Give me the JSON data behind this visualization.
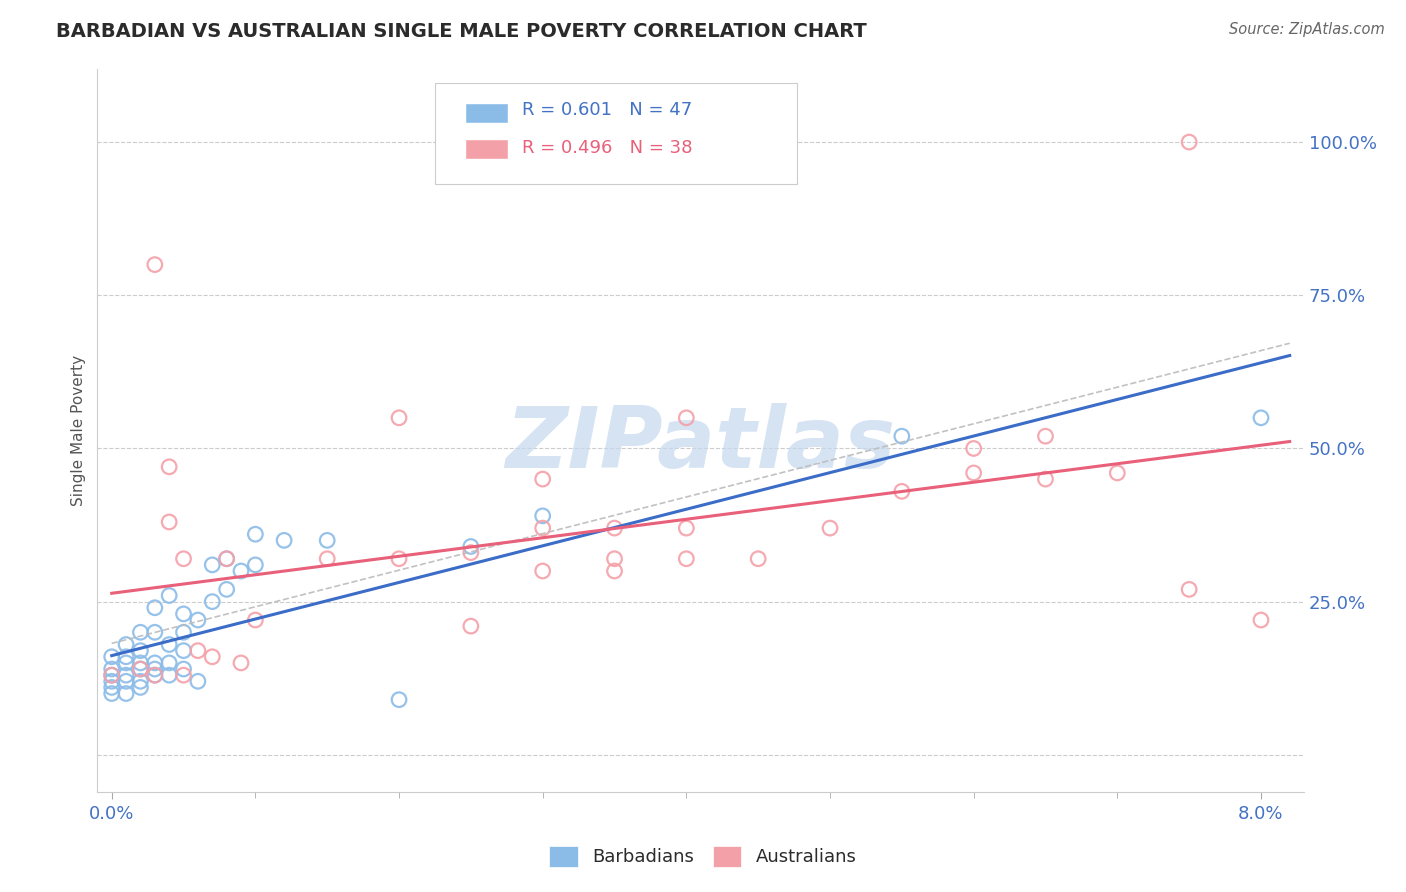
{
  "title": "BARBADIAN VS AUSTRALIAN SINGLE MALE POVERTY CORRELATION CHART",
  "source": "Source: ZipAtlas.com",
  "ylabel_label": "Single Male Poverty",
  "blue_color": "#8BBCE8",
  "pink_color": "#F4A0A8",
  "blue_line_color": "#3B6CC7",
  "pink_line_color": "#E8607A",
  "dash_color": "#BBBBBB",
  "watermark_color": "#C5D8EE",
  "grid_color": "#CCCCCC",
  "background_color": "#FFFFFF",
  "title_color": "#2B2B2B",
  "axis_label_color": "#555555",
  "tick_label_color": "#4472C4",
  "source_color": "#666666",
  "legend_text_color": "#1A1A1A",
  "legend_num_color": "#4472C4",
  "xlim": [
    -0.001,
    0.083
  ],
  "ylim": [
    -0.06,
    1.12
  ],
  "barbadian_x": [
    0.0,
    0.0,
    0.0,
    0.0,
    0.0,
    0.0,
    0.001,
    0.001,
    0.001,
    0.001,
    0.001,
    0.001,
    0.002,
    0.002,
    0.002,
    0.002,
    0.002,
    0.002,
    0.003,
    0.003,
    0.003,
    0.003,
    0.003,
    0.004,
    0.004,
    0.004,
    0.004,
    0.005,
    0.005,
    0.005,
    0.005,
    0.006,
    0.006,
    0.007,
    0.007,
    0.008,
    0.008,
    0.009,
    0.01,
    0.01,
    0.012,
    0.015,
    0.02,
    0.025,
    0.03,
    0.055,
    0.08
  ],
  "barbadian_y": [
    0.1,
    0.11,
    0.12,
    0.13,
    0.14,
    0.16,
    0.1,
    0.12,
    0.13,
    0.15,
    0.16,
    0.18,
    0.11,
    0.12,
    0.14,
    0.15,
    0.17,
    0.2,
    0.13,
    0.14,
    0.15,
    0.2,
    0.24,
    0.13,
    0.15,
    0.18,
    0.26,
    0.14,
    0.17,
    0.2,
    0.23,
    0.12,
    0.22,
    0.25,
    0.31,
    0.27,
    0.32,
    0.3,
    0.31,
    0.36,
    0.35,
    0.35,
    0.09,
    0.34,
    0.39,
    0.52,
    0.55
  ],
  "australian_x": [
    0.0,
    0.002,
    0.003,
    0.003,
    0.004,
    0.004,
    0.005,
    0.005,
    0.006,
    0.007,
    0.008,
    0.009,
    0.01,
    0.015,
    0.02,
    0.02,
    0.025,
    0.025,
    0.03,
    0.03,
    0.03,
    0.035,
    0.035,
    0.04,
    0.04,
    0.04,
    0.045,
    0.05,
    0.055,
    0.06,
    0.06,
    0.065,
    0.065,
    0.07,
    0.075,
    0.08,
    0.035,
    0.075
  ],
  "australian_y": [
    0.13,
    0.14,
    0.13,
    0.8,
    0.38,
    0.47,
    0.13,
    0.32,
    0.17,
    0.16,
    0.32,
    0.15,
    0.22,
    0.32,
    0.32,
    0.55,
    0.21,
    0.33,
    0.3,
    0.37,
    0.45,
    0.32,
    0.37,
    0.32,
    0.37,
    0.55,
    0.32,
    0.37,
    0.43,
    0.46,
    0.5,
    0.45,
    0.52,
    0.46,
    0.27,
    0.22,
    0.3,
    1.0
  ]
}
